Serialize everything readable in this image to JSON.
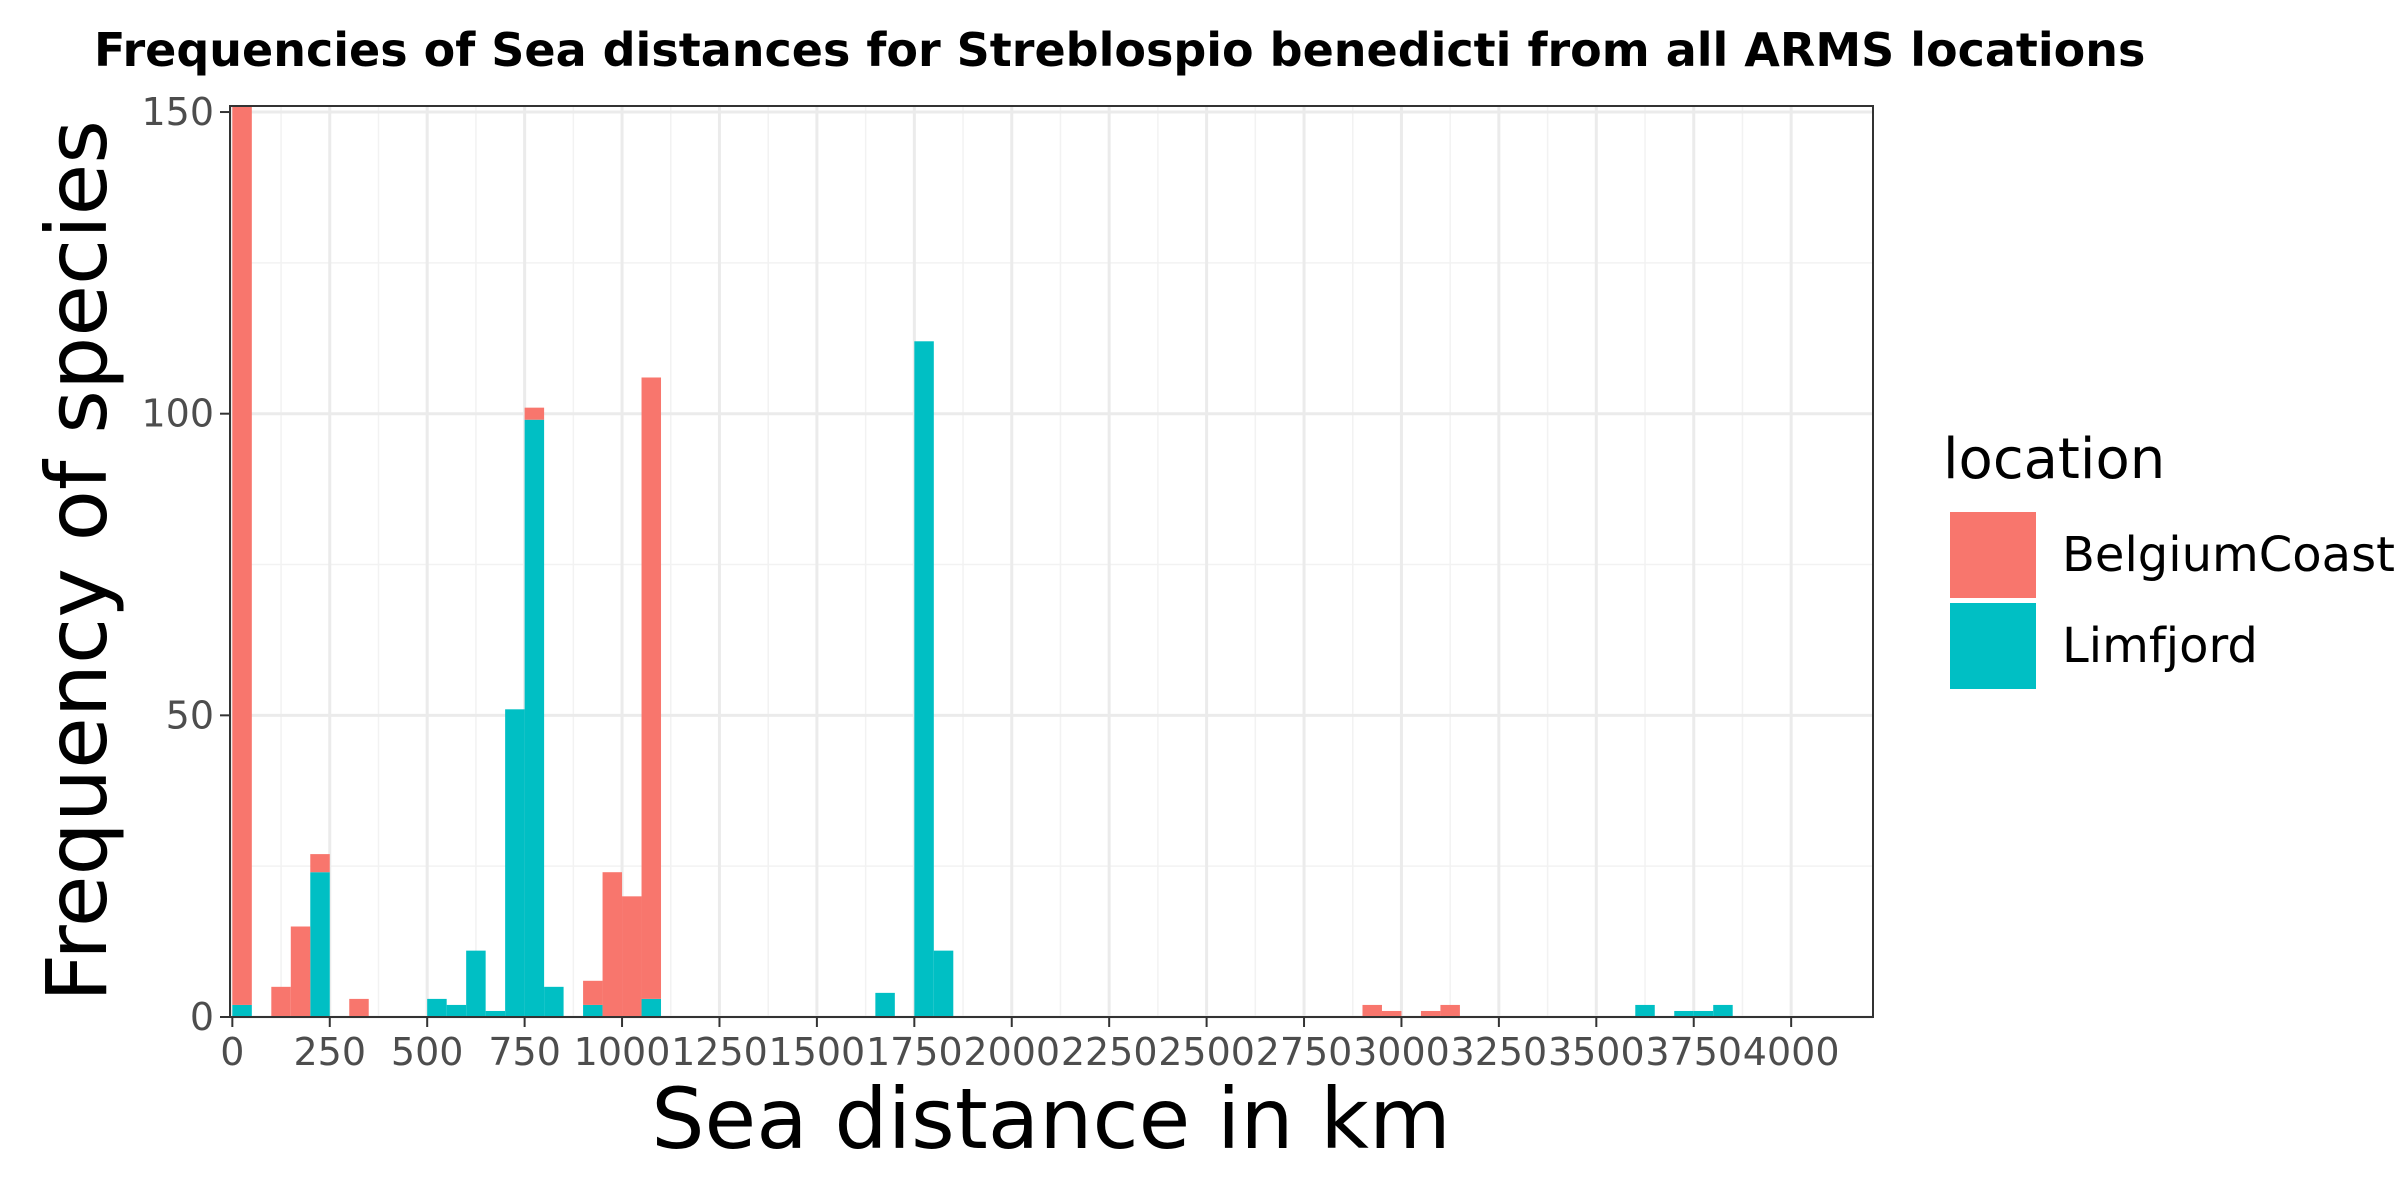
{
  "chart_data": {
    "type": "bar",
    "stacked": true,
    "title": "Frequencies of Sea distances for Streblospio benedicti from all ARMS locations",
    "xlabel": "Sea distance in km",
    "ylabel": "Frequency of species",
    "xlim": [
      -6,
      4210
    ],
    "ylim": [
      0,
      151
    ],
    "bin_width": 50,
    "grid": true,
    "x_ticks": [
      0,
      250,
      500,
      750,
      1000,
      1250,
      1500,
      1750,
      2000,
      2250,
      2500,
      2750,
      3000,
      3250,
      3500,
      3750,
      4000
    ],
    "x_tick_labels": [
      "0",
      "250",
      "500",
      "750",
      "1000",
      "1250",
      "1500",
      "1750",
      "2000",
      "2250",
      "2500",
      "2750",
      "3000",
      "3250",
      "3500",
      "3750",
      "4000"
    ],
    "y_ticks": [
      0,
      50,
      100,
      150
    ],
    "y_tick_labels": [
      "0",
      "50",
      "100",
      "150"
    ],
    "legend": {
      "title": "location",
      "position": "right"
    },
    "series": [
      {
        "name": "BelgiumCoast",
        "color": "#F8766D",
        "bins": [
          {
            "x": 0,
            "y": 149
          },
          {
            "x": 100,
            "y": 5
          },
          {
            "x": 150,
            "y": 15
          },
          {
            "x": 200,
            "y": 3
          },
          {
            "x": 300,
            "y": 3
          },
          {
            "x": 750,
            "y": 2
          },
          {
            "x": 900,
            "y": 4
          },
          {
            "x": 950,
            "y": 24
          },
          {
            "x": 1000,
            "y": 20
          },
          {
            "x": 1050,
            "y": 103
          },
          {
            "x": 2900,
            "y": 2
          },
          {
            "x": 2950,
            "y": 1
          },
          {
            "x": 3050,
            "y": 1
          },
          {
            "x": 3100,
            "y": 2
          }
        ]
      },
      {
        "name": "Limfjord",
        "color": "#00BFC4",
        "bins": [
          {
            "x": 0,
            "y": 2
          },
          {
            "x": 200,
            "y": 24
          },
          {
            "x": 500,
            "y": 3
          },
          {
            "x": 550,
            "y": 2
          },
          {
            "x": 600,
            "y": 11
          },
          {
            "x": 650,
            "y": 1
          },
          {
            "x": 700,
            "y": 51
          },
          {
            "x": 750,
            "y": 99
          },
          {
            "x": 800,
            "y": 5
          },
          {
            "x": 900,
            "y": 2
          },
          {
            "x": 1050,
            "y": 3
          },
          {
            "x": 1650,
            "y": 4
          },
          {
            "x": 1750,
            "y": 112
          },
          {
            "x": 1800,
            "y": 11
          },
          {
            "x": 3600,
            "y": 2
          },
          {
            "x": 3700,
            "y": 1
          },
          {
            "x": 3750,
            "y": 1
          },
          {
            "x": 3800,
            "y": 2
          }
        ]
      }
    ]
  }
}
